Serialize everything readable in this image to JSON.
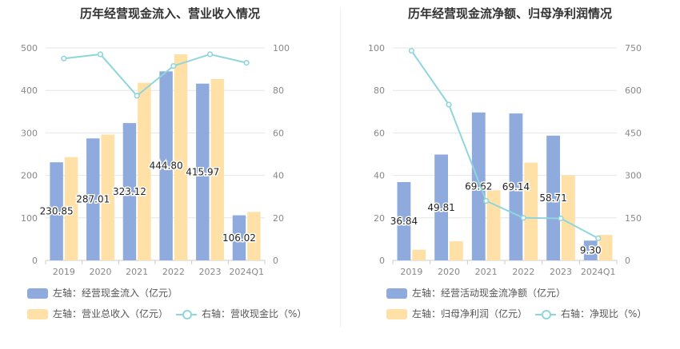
{
  "charts": [
    {
      "title": "历年经营现金流入、营业收入情况",
      "legend": [
        {
          "label": "左轴：经营现金流入（亿元）",
          "kind": "bar",
          "color": "#8faadc"
        },
        {
          "label": "左轴：营业总收入（亿元）",
          "kind": "bar",
          "color": "#ffe0a6"
        },
        {
          "label": "右轴：营收现金比（%）",
          "kind": "line",
          "color": "#8fd6dc"
        }
      ]
    },
    {
      "title": "历年经营现金流净额、归母净利润情况",
      "legend": [
        {
          "label": "左轴：经营活动现金流净额（亿元）",
          "kind": "bar",
          "color": "#8faadc"
        },
        {
          "label": "左轴：归母净利润（亿元）",
          "kind": "bar",
          "color": "#ffe0a6"
        },
        {
          "label": "右轴：净现比（%）",
          "kind": "line",
          "color": "#8fd6dc"
        }
      ]
    }
  ],
  "chart_data": [
    {
      "type": "bar",
      "title": "历年经营现金流入、营业收入情况",
      "categories": [
        "2019",
        "2020",
        "2021",
        "2022",
        "2023",
        "2024Q1"
      ],
      "ylim_left": [
        0,
        500
      ],
      "yticks_left": [
        "0",
        "100",
        "200",
        "300",
        "400",
        "500"
      ],
      "ylim_right": [
        0,
        100
      ],
      "yticks_right": [
        "0",
        "20",
        "40",
        "60",
        "80",
        "100"
      ],
      "grid": true,
      "series": [
        {
          "name": "左轴：经营现金流入（亿元）",
          "axis": "left",
          "type": "bar",
          "color": "#8faadc",
          "values": [
            230.85,
            287.01,
            323.12,
            444.8,
            415.97,
            106.02
          ],
          "labels": [
            "230.85",
            "287.01",
            "323.12",
            "444.80",
            "415.97",
            "106.02"
          ]
        },
        {
          "name": "左轴：营业总收入（亿元）",
          "axis": "left",
          "type": "bar",
          "color": "#ffe0a6",
          "values": [
            243,
            296,
            418,
            485,
            427,
            114
          ]
        },
        {
          "name": "右轴：营收现金比（%）",
          "axis": "right",
          "type": "line",
          "color": "#8fd6dc",
          "values": [
            95,
            97,
            77.5,
            91.5,
            97,
            93
          ]
        }
      ]
    },
    {
      "type": "bar",
      "title": "历年经营现金流净额、归母净利润情况",
      "categories": [
        "2019",
        "2020",
        "2021",
        "2022",
        "2023",
        "2024Q1"
      ],
      "ylim_left": [
        0,
        100
      ],
      "yticks_left": [
        "0",
        "20",
        "40",
        "60",
        "80",
        "100"
      ],
      "ylim_right": [
        0,
        750
      ],
      "yticks_right": [
        "0",
        "150",
        "300",
        "450",
        "600",
        "750"
      ],
      "grid": true,
      "series": [
        {
          "name": "左轴：经营活动现金流净额（亿元）",
          "axis": "left",
          "type": "bar",
          "color": "#8faadc",
          "values": [
            36.84,
            49.81,
            69.62,
            69.14,
            58.71,
            9.3
          ],
          "labels": [
            "36.84",
            "49.81",
            "69.62",
            "69.14",
            "58.71",
            "9.30"
          ]
        },
        {
          "name": "左轴：归母净利润（亿元）",
          "axis": "left",
          "type": "bar",
          "color": "#ffe0a6",
          "values": [
            5,
            9,
            33,
            46,
            40,
            12
          ]
        },
        {
          "name": "右轴：净现比（%）",
          "axis": "right",
          "type": "line",
          "color": "#8fd6dc",
          "values": [
            740,
            550,
            210,
            150,
            148,
            78
          ]
        }
      ]
    }
  ]
}
